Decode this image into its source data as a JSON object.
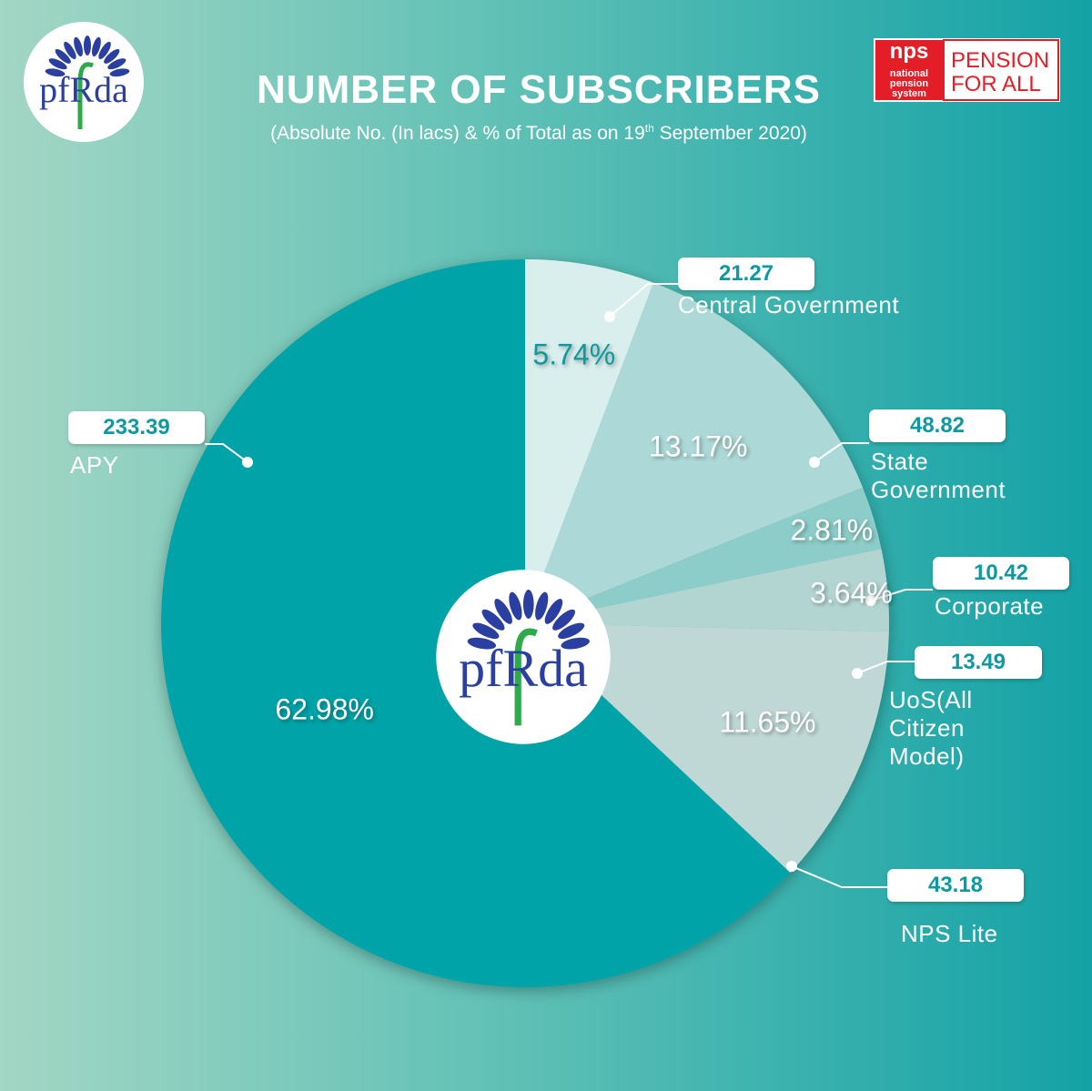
{
  "header": {
    "title": "NUMBER OF SUBSCRIBERS",
    "subtitle": "(Absolute No. (In lacs) & % of Total as on 19",
    "subtitle_sup": "th",
    "subtitle_end": " September 2020)"
  },
  "logos": {
    "pfrda": "pfRda",
    "nps": "nps",
    "nps_sub": [
      "national",
      "pension",
      "system"
    ],
    "tagline": [
      "PENSION",
      "FOR ALL"
    ]
  },
  "chart_data": {
    "type": "pie",
    "categories": [
      "Central Government",
      "State Government",
      "Corporate",
      "UoS(All Citizen Model)",
      "NPS Lite",
      "APY"
    ],
    "values": [
      5.74,
      13.17,
      2.81,
      3.64,
      11.65,
      62.98
    ],
    "value_labels": [
      "5.74%",
      "13.17%",
      "2.81%",
      "3.64%",
      "11.65%",
      "62.98%"
    ],
    "absolute_values": [
      21.27,
      48.82,
      10.42,
      13.49,
      43.18,
      233.39
    ],
    "colors": [
      "#d8efed",
      "#acd9d7",
      "#8dcdc9",
      "#b3d5d2",
      "#bfd8d5",
      "#00a3a7"
    ]
  }
}
